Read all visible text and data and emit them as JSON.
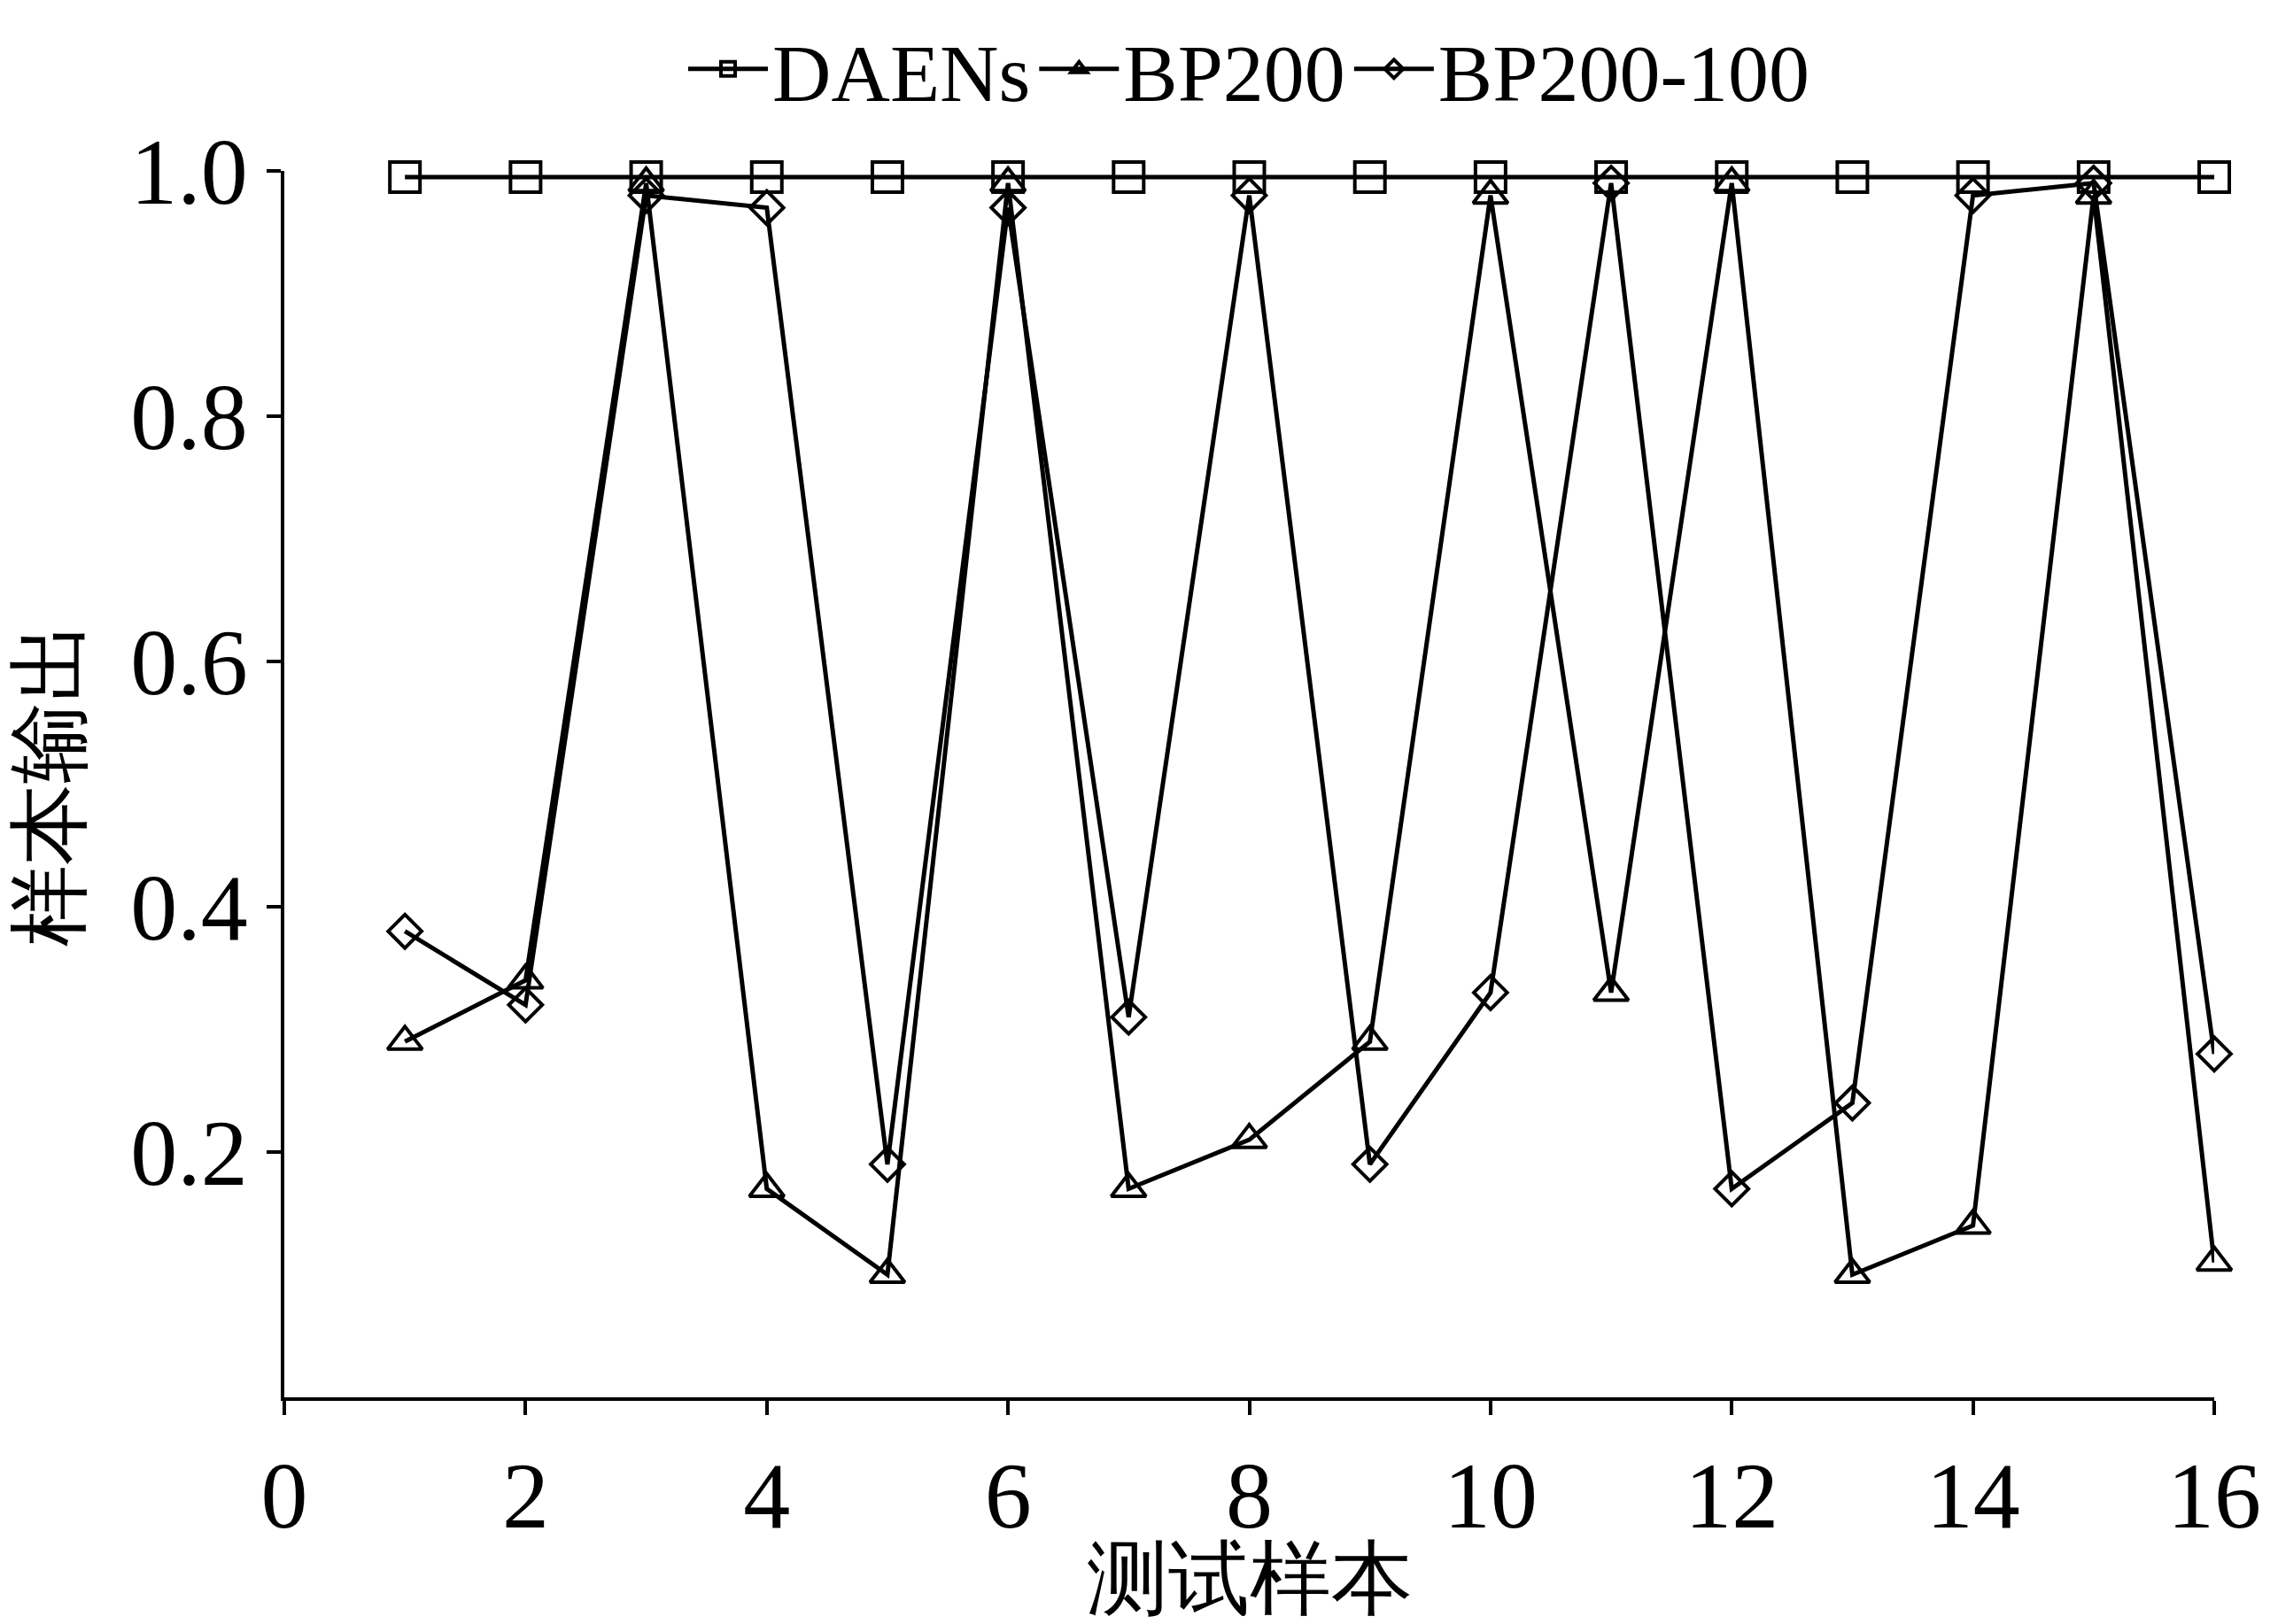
{
  "chart_data": {
    "type": "line",
    "xlabel": "测试样本",
    "ylabel": "样本输出",
    "x": [
      1,
      2,
      3,
      4,
      5,
      6,
      7,
      8,
      9,
      10,
      11,
      12,
      13,
      14,
      15,
      16
    ],
    "xlim": [
      0,
      16
    ],
    "xticks": [
      0,
      2,
      4,
      6,
      8,
      10,
      12,
      14,
      16
    ],
    "ylim": [
      0,
      1
    ],
    "yticks": [
      0.2,
      0.4,
      0.6,
      0.8,
      {
        "value": 1,
        "label": "1.0"
      }
    ],
    "legend": "top",
    "line_style": "solid",
    "series": [
      {
        "name": "DAENs",
        "color": "#000000",
        "marker": "square",
        "values": [
          0.995,
          0.995,
          0.995,
          0.995,
          0.995,
          0.995,
          0.995,
          0.995,
          0.995,
          0.995,
          0.995,
          0.995,
          0.995,
          0.995,
          0.995,
          0.995
        ]
      },
      {
        "name": "BP200",
        "color": "#000000",
        "marker": "triangle",
        "values": [
          0.29,
          0.34,
          0.99,
          0.17,
          0.1,
          0.99,
          0.17,
          0.21,
          0.29,
          0.98,
          0.33,
          0.99,
          0.1,
          0.14,
          0.98,
          0.11
        ]
      },
      {
        "name": "BP200-100",
        "color": "#000000",
        "marker": "diamond",
        "values": [
          0.38,
          0.32,
          0.98,
          0.97,
          0.19,
          0.97,
          0.31,
          0.98,
          0.19,
          0.33,
          0.99,
          0.17,
          0.24,
          0.98,
          0.99,
          0.28
        ]
      }
    ]
  }
}
